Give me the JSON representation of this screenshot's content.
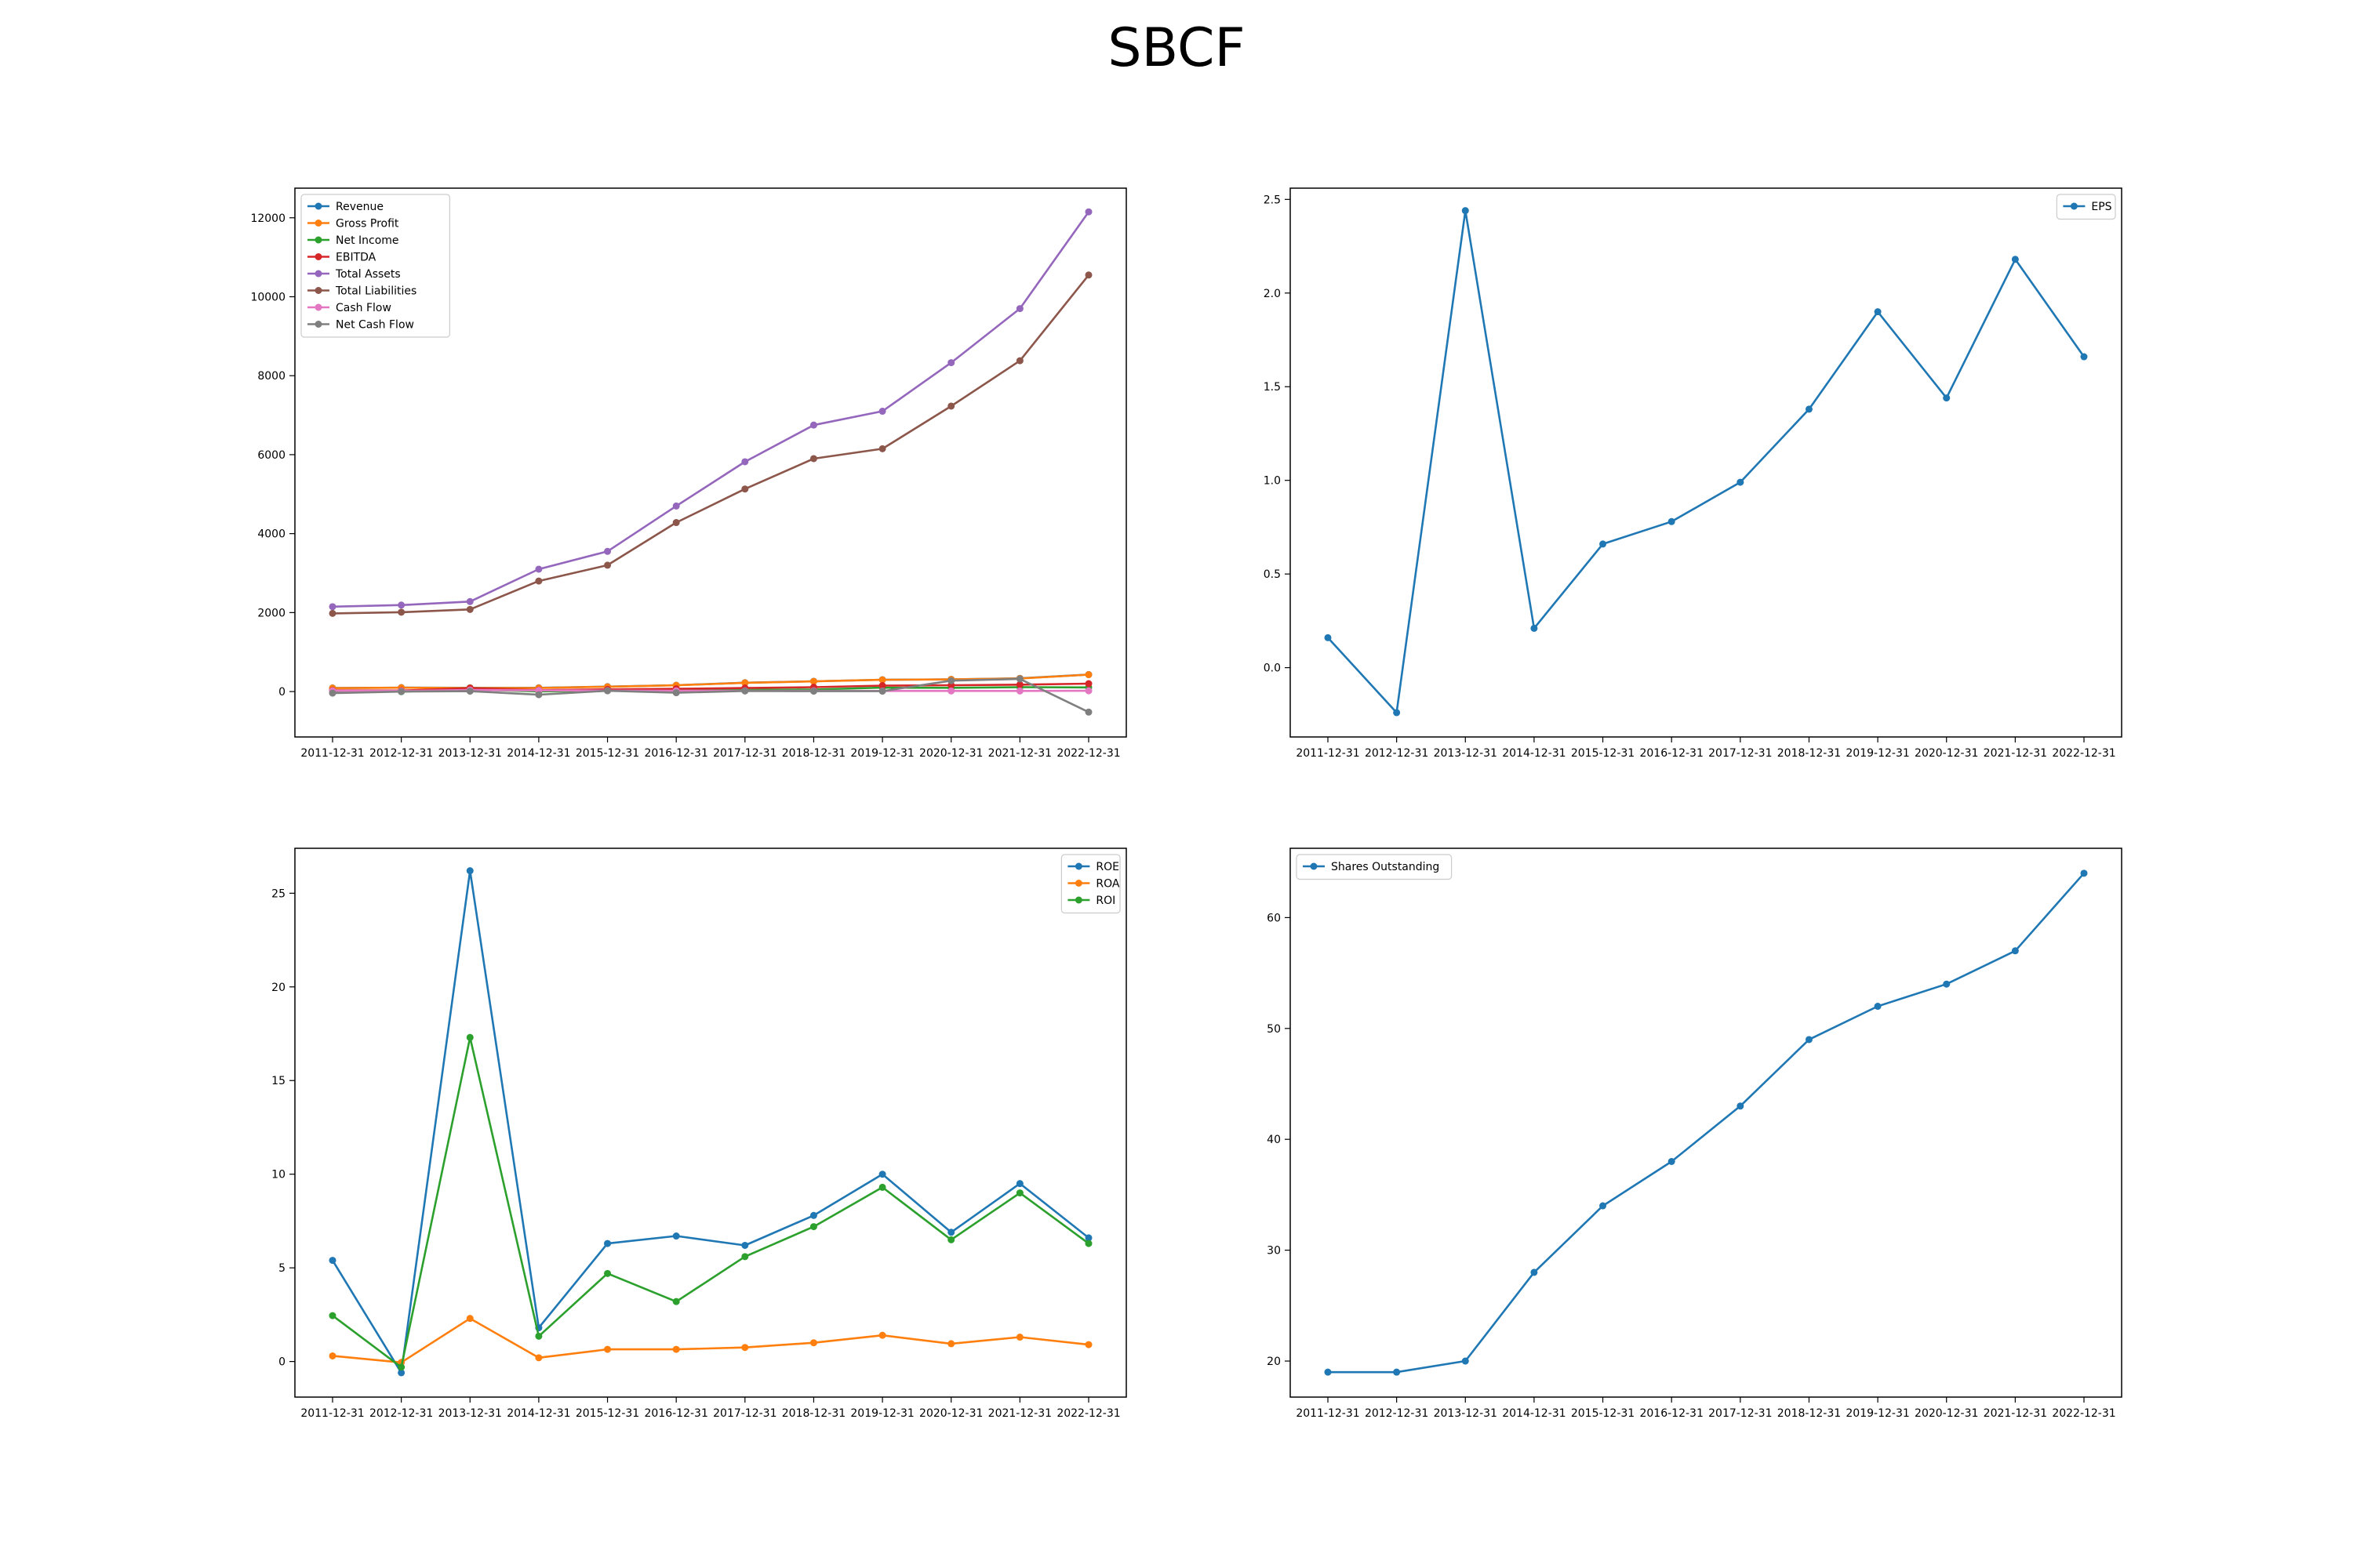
{
  "title": "SBCF",
  "chart_data": [
    {
      "type": "line",
      "x": [
        "2011-12-31",
        "2012-12-31",
        "2013-12-31",
        "2014-12-31",
        "2015-12-31",
        "2016-12-31",
        "2017-12-31",
        "2018-12-31",
        "2019-12-31",
        "2020-12-31",
        "2021-12-31",
        "2022-12-31"
      ],
      "ylim": [
        -1150,
        12750
      ],
      "yticks": [
        0,
        2000,
        4000,
        6000,
        8000,
        10000,
        12000
      ],
      "legend": "upper left",
      "series": [
        {
          "name": "Revenue",
          "color": "#1f77b4",
          "values": [
            90,
            100,
            95,
            95,
            125,
            160,
            225,
            260,
            300,
            310,
            335,
            430
          ]
        },
        {
          "name": "Gross Profit",
          "color": "#ff7f0e",
          "values": [
            88,
            98,
            92,
            92,
            122,
            158,
            222,
            258,
            298,
            308,
            332,
            428
          ]
        },
        {
          "name": "Net Income",
          "color": "#2ca02c",
          "values": [
            4,
            -3,
            52,
            6,
            23,
            31,
            43,
            52,
            100,
            95,
            110,
            105
          ]
        },
        {
          "name": "EBITDA",
          "color": "#d62728",
          "values": [
            30,
            25,
            85,
            35,
            55,
            70,
            90,
            110,
            150,
            160,
            175,
            200
          ]
        },
        {
          "name": "Total Assets",
          "color": "#9467bd",
          "values": [
            2150,
            2190,
            2280,
            3100,
            3550,
            4700,
            5820,
            6750,
            7100,
            8330,
            9700,
            12150
          ]
        },
        {
          "name": "Total Liabilities",
          "color": "#8c564b",
          "values": [
            1980,
            2010,
            2080,
            2800,
            3200,
            4280,
            5130,
            5900,
            6150,
            7230,
            8380,
            10550
          ]
        },
        {
          "name": "Cash Flow",
          "color": "#e377c2",
          "values": [
            20,
            15,
            40,
            30,
            25,
            20,
            20,
            20,
            15,
            15,
            15,
            20
          ]
        },
        {
          "name": "Net Cash Flow",
          "color": "#7f7f7f",
          "values": [
            -40,
            0,
            10,
            -80,
            20,
            -30,
            15,
            10,
            10,
            275,
            320,
            -520
          ]
        }
      ]
    },
    {
      "type": "line",
      "x": [
        "2011-12-31",
        "2012-12-31",
        "2013-12-31",
        "2014-12-31",
        "2015-12-31",
        "2016-12-31",
        "2017-12-31",
        "2018-12-31",
        "2019-12-31",
        "2020-12-31",
        "2021-12-31",
        "2022-12-31"
      ],
      "ylim": [
        -0.37,
        2.56
      ],
      "yticks": [
        0.0,
        0.5,
        1.0,
        1.5,
        2.0,
        2.5
      ],
      "legend": "upper right",
      "series": [
        {
          "name": "EPS",
          "color": "#1f77b4",
          "values": [
            0.16,
            -0.24,
            2.44,
            0.21,
            0.66,
            0.78,
            0.99,
            1.38,
            1.9,
            1.44,
            2.18,
            1.66
          ]
        }
      ]
    },
    {
      "type": "line",
      "x": [
        "2011-12-31",
        "2012-12-31",
        "2013-12-31",
        "2014-12-31",
        "2015-12-31",
        "2016-12-31",
        "2017-12-31",
        "2018-12-31",
        "2019-12-31",
        "2020-12-31",
        "2021-12-31",
        "2022-12-31"
      ],
      "ylim": [
        -1.9,
        27.4
      ],
      "yticks": [
        0,
        5,
        10,
        15,
        20,
        25
      ],
      "legend": "upper right",
      "series": [
        {
          "name": "ROE",
          "color": "#1f77b4",
          "values": [
            5.4,
            -0.6,
            26.2,
            1.8,
            6.3,
            6.7,
            6.2,
            7.8,
            10.0,
            6.9,
            9.5,
            6.6
          ]
        },
        {
          "name": "ROA",
          "color": "#ff7f0e",
          "values": [
            0.3,
            -0.05,
            2.3,
            0.2,
            0.65,
            0.65,
            0.75,
            1.0,
            1.4,
            0.95,
            1.3,
            0.9
          ]
        },
        {
          "name": "ROI",
          "color": "#2ca02c",
          "values": [
            2.45,
            -0.3,
            17.3,
            1.35,
            4.7,
            3.2,
            5.6,
            7.2,
            9.3,
            6.5,
            9.0,
            6.3
          ]
        }
      ]
    },
    {
      "type": "line",
      "x": [
        "2011-12-31",
        "2012-12-31",
        "2013-12-31",
        "2014-12-31",
        "2015-12-31",
        "2016-12-31",
        "2017-12-31",
        "2018-12-31",
        "2019-12-31",
        "2020-12-31",
        "2021-12-31",
        "2022-12-31"
      ],
      "ylim": [
        16.75,
        66.25
      ],
      "yticks": [
        20,
        30,
        40,
        50,
        60
      ],
      "legend": "upper left",
      "series": [
        {
          "name": "Shares Outstanding",
          "color": "#1f77b4",
          "values": [
            19,
            19,
            20,
            28,
            34,
            38,
            43,
            49,
            52,
            54,
            57,
            64
          ]
        }
      ]
    }
  ]
}
